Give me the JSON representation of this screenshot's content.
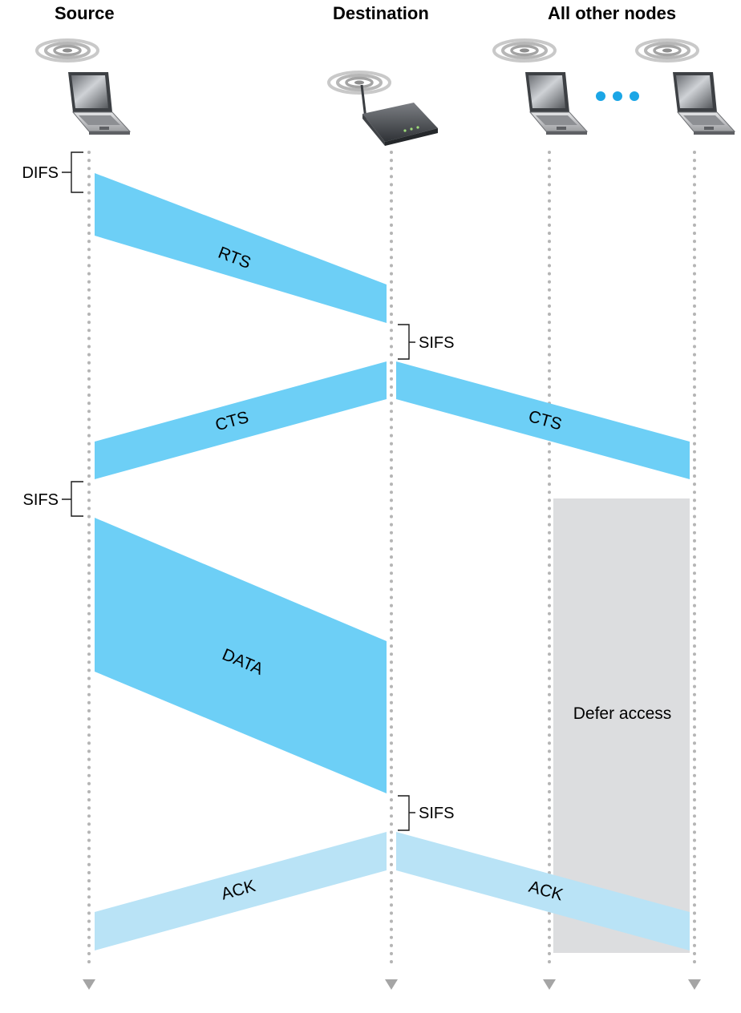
{
  "headers": {
    "source": "Source",
    "destination": "Destination",
    "others": "All other nodes"
  },
  "intervals": {
    "difs": "DIFS",
    "sifs_after_rts": "SIFS",
    "sifs_after_cts": "SIFS",
    "sifs_after_data": "SIFS"
  },
  "frames": {
    "rts": "RTS",
    "cts_to_source": "CTS",
    "cts_to_others": "CTS",
    "data": "DATA",
    "ack_to_source": "ACK",
    "ack_to_others": "ACK"
  },
  "defer": {
    "label": "Defer access"
  },
  "colors": {
    "frame": "#6dcff6",
    "ack": "#b9e3f6",
    "defer": "#dcdddf",
    "timeline": "#b5b5b5"
  },
  "icons": {
    "source": "laptop-icon",
    "destination": "access-point-icon",
    "other_1": "laptop-icon",
    "other_2": "laptop-icon",
    "ellipsis": "ellipsis-dots-icon"
  }
}
